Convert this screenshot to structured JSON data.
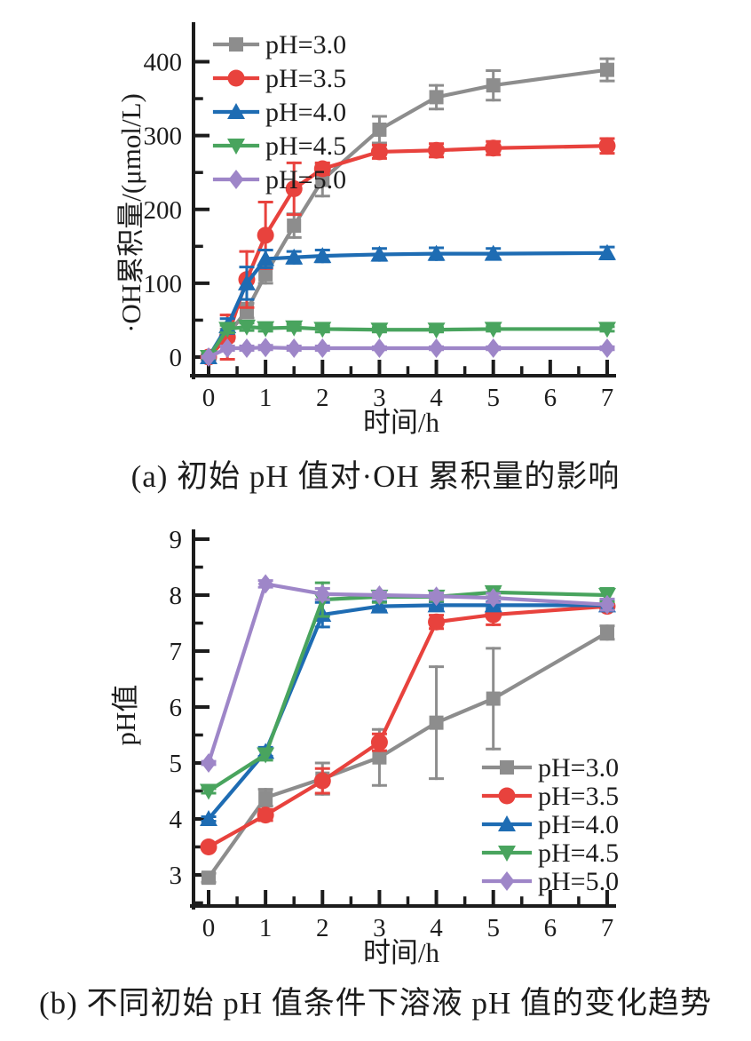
{
  "page": {
    "background": "#ffffff",
    "axis_color": "#1c1c1c"
  },
  "chart_data": [
    {
      "type": "line",
      "caption": "(a) 初始 pH 值对·OH 累积量的影响",
      "xlabel": "时间/h",
      "ylabel": "·OH累积量/(μmol/L)",
      "xlim": [
        -0.27,
        7.13
      ],
      "ylim": [
        -25,
        448
      ],
      "xticks": [
        0,
        1,
        2,
        3,
        4,
        5,
        6,
        7
      ],
      "yticks": [
        0,
        100,
        200,
        300,
        400
      ],
      "x_minor_step": 0.5,
      "y_minor_step": 50,
      "grid": false,
      "legend_position": "top-left",
      "x": [
        0,
        0.33,
        0.67,
        1,
        1.5,
        2,
        3,
        4,
        5,
        7
      ],
      "series": [
        {
          "name": "pH=3.0",
          "color": "#8d8d8d",
          "marker": "square",
          "values": [
            0,
            30,
            63,
            112,
            178,
            240,
            308,
            352,
            368,
            389
          ],
          "errors": [
            3,
            8,
            10,
            12,
            16,
            22,
            18,
            16,
            20,
            15
          ]
        },
        {
          "name": "pH=3.5",
          "color": "#e8423d",
          "marker": "circle",
          "values": [
            0,
            27,
            105,
            165,
            228,
            255,
            278,
            280,
            283,
            286
          ],
          "errors": [
            3,
            30,
            38,
            45,
            35,
            8,
            9,
            9,
            9,
            10
          ]
        },
        {
          "name": "pH=4.0",
          "color": "#1e6cb3",
          "marker": "triangle-up",
          "values": [
            0,
            42,
            100,
            133,
            135,
            137,
            139,
            140,
            140,
            141
          ],
          "errors": [
            3,
            10,
            22,
            12,
            8,
            8,
            8,
            8,
            7,
            8
          ]
        },
        {
          "name": "pH=4.5",
          "color": "#49a45e",
          "marker": "triangle-down",
          "values": [
            0,
            38,
            41,
            39,
            40,
            38,
            37,
            37,
            38,
            38
          ],
          "errors": [
            2,
            5,
            5,
            4,
            4,
            4,
            3,
            3,
            3,
            3
          ]
        },
        {
          "name": "pH=5.0",
          "color": "#9e86c8",
          "marker": "diamond",
          "values": [
            0,
            12,
            12,
            13,
            12,
            12,
            12,
            12,
            12,
            12
          ],
          "errors": [
            1,
            3,
            3,
            3,
            3,
            3,
            2,
            2,
            2,
            2
          ]
        }
      ]
    },
    {
      "type": "line",
      "caption": "(b) 不同初始 pH 值条件下溶液 pH 值的变化趋势",
      "xlabel": "时间/h",
      "ylabel": "pH值",
      "xlim": [
        -0.27,
        7.13
      ],
      "ylim": [
        2.45,
        9.15
      ],
      "xticks": [
        0,
        1,
        2,
        3,
        4,
        5,
        6,
        7
      ],
      "yticks": [
        3,
        4,
        5,
        6,
        7,
        8,
        9
      ],
      "x_minor_step": 0.5,
      "y_minor_step": 0.5,
      "grid": false,
      "legend_position": "bottom-right",
      "x": [
        0,
        1,
        2,
        3,
        4,
        5,
        7
      ],
      "series": [
        {
          "name": "pH=3.0",
          "color": "#8d8d8d",
          "marker": "square",
          "values": [
            2.95,
            4.38,
            4.72,
            5.1,
            5.72,
            6.15,
            7.33
          ],
          "errors": [
            0.08,
            0.15,
            0.28,
            0.5,
            1.0,
            0.9,
            0.12
          ]
        },
        {
          "name": "pH=3.5",
          "color": "#e8423d",
          "marker": "circle",
          "values": [
            3.5,
            4.07,
            4.68,
            5.37,
            7.52,
            7.65,
            7.8
          ],
          "errors": [
            0.05,
            0.1,
            0.22,
            0.15,
            0.12,
            0.18,
            0.06
          ]
        },
        {
          "name": "pH=4.0",
          "color": "#1e6cb3",
          "marker": "triangle-up",
          "values": [
            4.0,
            5.2,
            7.65,
            7.8,
            7.82,
            7.82,
            7.82
          ],
          "errors": [
            0.04,
            0.08,
            0.22,
            0.08,
            0.06,
            0.06,
            0.1
          ]
        },
        {
          "name": "pH=4.5",
          "color": "#49a45e",
          "marker": "triangle-down",
          "values": [
            4.5,
            5.15,
            7.92,
            7.97,
            7.97,
            8.05,
            8.0
          ],
          "errors": [
            0.04,
            0.1,
            0.3,
            0.1,
            0.08,
            0.08,
            0.12
          ]
        },
        {
          "name": "pH=5.0",
          "color": "#9e86c8",
          "marker": "diamond",
          "values": [
            5.0,
            8.2,
            8.02,
            8.0,
            7.98,
            7.95,
            7.83
          ],
          "errors": [
            0.03,
            0.06,
            0.1,
            0.06,
            0.06,
            0.08,
            0.1
          ]
        }
      ]
    }
  ]
}
